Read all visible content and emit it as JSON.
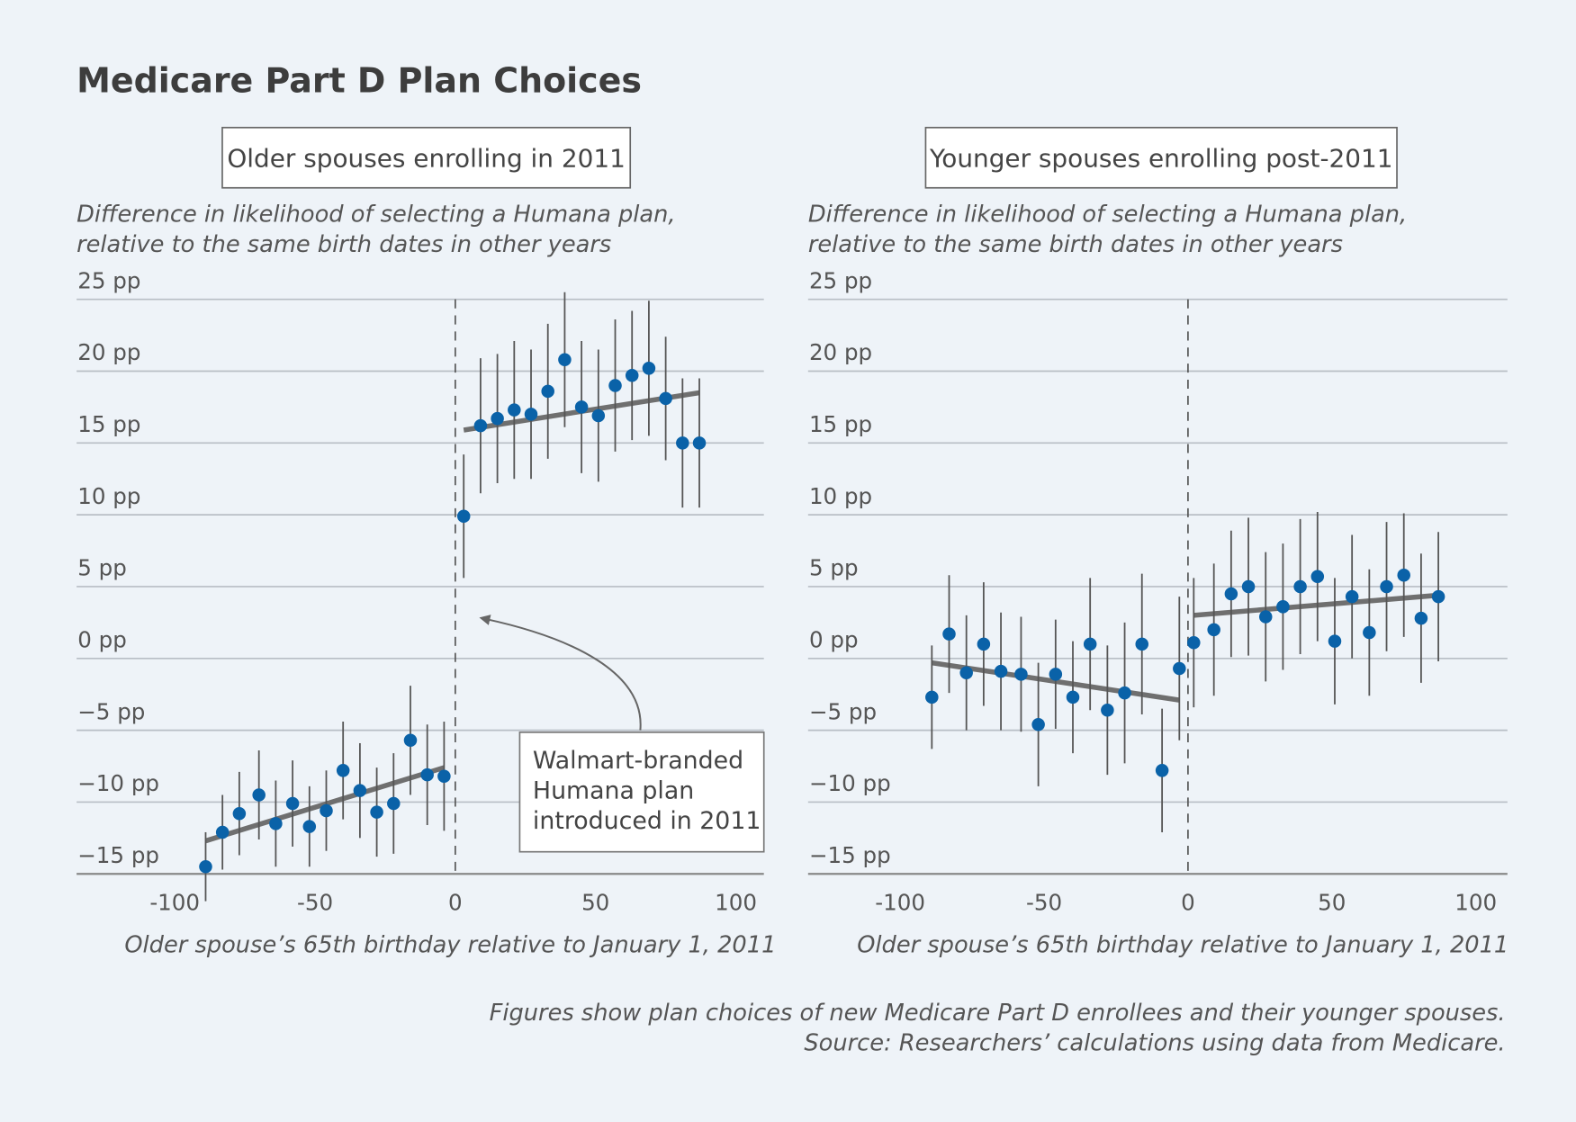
{
  "title": "Medicare Part D Plan Choices",
  "footnote": [
    "Figures show plan choices of new Medicare Part D enrollees and their younger spouses.",
    "Source: Researchers’ calculations using data from Medicare."
  ],
  "chart_data": [
    {
      "type": "scatter",
      "panel_title": "Older spouses enrolling in 2011",
      "y_label": [
        "Difference in likelihood of selecting a Humana plan,",
        "relative to the same birth dates in other years"
      ],
      "x_label": "Older spouse’s 65th birthday relative to January 1, 2011",
      "xlim": [
        -135,
        110
      ],
      "xticks": [
        -100,
        -50,
        0,
        50,
        100
      ],
      "ylim": [
        -15,
        25
      ],
      "yticks": [
        {
          "value": -15,
          "label": "−15 pp"
        },
        {
          "value": -10,
          "label": "−10 pp"
        },
        {
          "value": -5,
          "label": "−5 pp"
        },
        {
          "value": 0,
          "label": "0 pp"
        },
        {
          "value": 5,
          "label": "5 pp"
        },
        {
          "value": 10,
          "label": "10 pp"
        },
        {
          "value": 15,
          "label": "15 pp"
        },
        {
          "value": 20,
          "label": "20 pp"
        },
        {
          "value": 25,
          "label": "25 pp"
        }
      ],
      "grid": true,
      "reference_x": 0,
      "series": [
        {
          "color": "#0a62a8",
          "x": [
            -89,
            -83,
            -77,
            -70,
            -64,
            -58,
            -52,
            -46,
            -40,
            -34,
            -28,
            -22,
            -16,
            -10,
            -4,
            3,
            9,
            15,
            21,
            27,
            33,
            39,
            45,
            51,
            57,
            63,
            69,
            75,
            81,
            87
          ],
          "values": [
            -14.5,
            -12.1,
            -10.8,
            -9.5,
            -11.5,
            -10.1,
            -11.7,
            -10.6,
            -7.8,
            -9.2,
            -10.7,
            -10.1,
            -5.7,
            -8.1,
            -8.2,
            9.9,
            16.2,
            16.7,
            17.3,
            17.0,
            18.6,
            20.8,
            17.5,
            16.9,
            19.0,
            19.7,
            20.2,
            18.1,
            15.0,
            15.0
          ],
          "errors": [
            2.4,
            2.6,
            2.9,
            3.1,
            3.0,
            3.0,
            2.8,
            2.8,
            3.4,
            3.3,
            3.1,
            3.5,
            3.8,
            3.5,
            3.8,
            4.3,
            4.7,
            4.5,
            4.8,
            4.5,
            4.7,
            4.7,
            4.6,
            4.6,
            4.6,
            4.5,
            4.7,
            4.3,
            4.5,
            4.5
          ]
        }
      ],
      "fit_lines": [
        {
          "color": "#6f6f6f",
          "x": [
            -89,
            -4
          ],
          "values": [
            -12.7,
            -7.6
          ]
        },
        {
          "color": "#6f6f6f",
          "x": [
            3,
            87
          ],
          "values": [
            15.9,
            18.5
          ]
        }
      ],
      "annotation": [
        "Walmart-branded",
        "Humana plan",
        "introduced in 2011"
      ]
    },
    {
      "type": "scatter",
      "panel_title": "Younger spouses enrolling post-2011",
      "y_label": [
        "Difference in likelihood of selecting a Humana plan,",
        "relative to the same birth dates in other years"
      ],
      "x_label": "Older spouse’s 65th birthday relative to January 1, 2011",
      "xlim": [
        -132,
        111
      ],
      "xticks": [
        -100,
        -50,
        0,
        50,
        100
      ],
      "ylim": [
        -15,
        25
      ],
      "yticks": [
        {
          "value": -15,
          "label": "−15 pp"
        },
        {
          "value": -10,
          "label": "−10 pp"
        },
        {
          "value": -5,
          "label": "−5 pp"
        },
        {
          "value": 0,
          "label": "0 pp"
        },
        {
          "value": 5,
          "label": "5 pp"
        },
        {
          "value": 10,
          "label": "10 pp"
        },
        {
          "value": 15,
          "label": "15 pp"
        },
        {
          "value": 20,
          "label": "20 pp"
        },
        {
          "value": 25,
          "label": "25 pp"
        }
      ],
      "grid": true,
      "reference_x": 0,
      "series": [
        {
          "color": "#0a62a8",
          "x": [
            -89,
            -83,
            -77,
            -71,
            -65,
            -58,
            -52,
            -46,
            -40,
            -34,
            -28,
            -22,
            -16,
            -9,
            -3,
            2,
            9,
            15,
            21,
            27,
            33,
            39,
            45,
            51,
            57,
            63,
            69,
            75,
            81,
            87
          ],
          "values": [
            -2.7,
            1.7,
            -1.0,
            1.0,
            -0.9,
            -1.1,
            -4.6,
            -1.1,
            -2.7,
            1.0,
            -3.6,
            -2.4,
            1.0,
            -7.8,
            -0.7,
            1.1,
            2.0,
            4.5,
            5.0,
            2.9,
            3.6,
            5.0,
            5.7,
            1.2,
            4.3,
            1.8,
            5.0,
            5.8,
            2.8,
            4.3
          ],
          "errors": [
            3.6,
            4.1,
            4.0,
            4.3,
            4.1,
            4.0,
            4.3,
            3.8,
            3.9,
            4.6,
            4.5,
            4.9,
            4.9,
            4.3,
            5.0,
            4.5,
            4.6,
            4.4,
            4.8,
            4.5,
            4.4,
            4.7,
            4.5,
            4.4,
            4.3,
            4.4,
            4.5,
            4.3,
            4.5,
            4.5
          ]
        }
      ],
      "fit_lines": [
        {
          "color": "#6f6f6f",
          "x": [
            -89,
            -3
          ],
          "values": [
            -0.3,
            -2.9
          ]
        },
        {
          "color": "#6f6f6f",
          "x": [
            2,
            87
          ],
          "values": [
            3.0,
            4.4
          ]
        }
      ]
    }
  ]
}
